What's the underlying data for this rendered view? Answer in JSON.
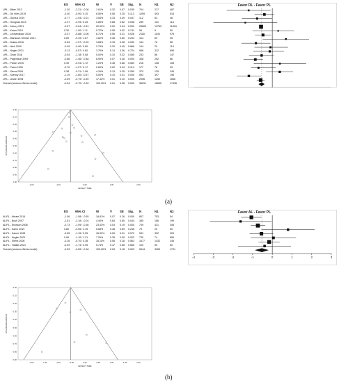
{
  "panel_labels": [
    "(a)",
    "(b)"
  ],
  "chart_data": [
    {
      "type": "table",
      "panel": "(a)",
      "columns": [
        "",
        "ES",
        "95% CI",
        "W",
        "V",
        "SE",
        "Sig.",
        "N",
        "N1",
        "N2"
      ],
      "rows": [
        [
          "LIPL - Biber 2012",
          "-1.20",
          "-2.31 / -0.08",
          "1.61%",
          "0.32",
          "0.57",
          "0.035",
          "704",
          "217",
          "487"
        ],
        [
          "LIPL - De Vries 2019",
          "-0.40",
          "-0.90 / 0.10",
          "6.50%",
          "0.06",
          "0.25",
          "0.113",
          "1059",
          "493",
          "516"
        ],
        [
          "LIPL - Gurbuz 2019",
          "-0.77",
          "-1.54 / -0.01",
          "3.54%",
          "0.15",
          "0.39",
          "0.047",
          "112",
          "64",
          "48"
        ],
        [
          "LIPL - Honglula 2019",
          "-1.37",
          "-2.99 / 0.25",
          "0.89%",
          "0.68",
          "0.82",
          "0.098",
          "289",
          "151",
          "118"
        ],
        [
          "LIPL - Jobory 2021",
          "-0.57",
          "-0.64 / -0.51",
          "22.90%",
          "0.00",
          "0.04",
          "0.000",
          "25603",
          "13769",
          "11834"
        ],
        [
          "LIPL - Kamo 2019",
          "0.30",
          "-1.00 / 1.11",
          "0.72%",
          "0.95",
          "0.92",
          "0.741",
          "59",
          "9",
          "50"
        ],
        [
          "LIPL - Leonardsson 2016",
          "-0.47",
          "-0.88 / -0.06",
          "8.71%",
          "0.05",
          "0.21",
          "0.026",
          "2118",
          "1140",
          "978"
        ],
        [
          "LIPL - Mansouri-Tehrani 2021",
          "0.69",
          "-0.49 / 1.87",
          "1.62%",
          "0.36",
          "0.60",
          "0.254",
          "104",
          "69",
          "35"
        ],
        [
          "LIPL - Mukka 2016",
          "-0.83",
          "-1.57 / -0.09",
          "3.68%",
          "0.15",
          "0.38",
          "0.030",
          "134",
          "76",
          "58"
        ],
        [
          "LIPL - Nieh 2009",
          "-0.09",
          "-0.90 / 0.80",
          "2.79%",
          "0.20",
          "0.45",
          "0.866",
          "144",
          "29",
          "115"
        ],
        [
          "LIPL - Nogler 2021",
          "-0.13",
          "-0.97 / 0.60",
          "3.76%",
          "0.14",
          "0.36",
          "0.724",
          "968",
          "312",
          "656"
        ],
        [
          "LIPL - Ocan 2016",
          "-0.54",
          "-1.18 / 0.08",
          "5.00%",
          "0.10",
          "0.32",
          "0.085",
          "233",
          "86",
          "147"
        ],
        [
          "LIPL - Pagenison 2009",
          "-0.86",
          "-1.46 / -0.48",
          "6.90%",
          "0.07",
          "0.26",
          "0.000",
          "338",
          "252",
          "86"
        ],
        [
          "LIPL - Parker 2015",
          "0.39",
          "-0.94 / 1.72",
          "1.29%",
          "0.46",
          "0.68",
          "0.569",
          "216",
          "108",
          "108"
        ],
        [
          "LIPL - Paton 1999",
          "-0.70",
          "-1.07 / 0.17",
          "2.60%",
          "0.20",
          "0.44",
          "0.114",
          "177",
          "78",
          "99"
        ],
        [
          "LIPL - Sierra 2009",
          "0.38",
          "-0.31 / 1.06",
          "4.16%",
          "0.13",
          "0.35",
          "0.280",
          "370",
          "125",
          "245"
        ],
        [
          "LIPL - Svenoy 2017",
          "-1.19",
          "-1.80 / -0.57",
          "5.00%",
          "0.10",
          "0.31",
          "0.000",
          "593",
          "397",
          "196"
        ],
        [
          "LIPL - Unwin 1994",
          "-0.59",
          "-0.79 / -0.39",
          "17.42%",
          "0.01",
          "0.10",
          "0.000",
          "2906",
          "1250",
          "1656"
        ],
        [
          "Overall (random-effects model)",
          "-0.54",
          "-0.70 / -0.39",
          "100.00%",
          "0.01",
          "0.08",
          "0.000",
          "36291",
          "18655",
          "17436"
        ]
      ]
    },
    {
      "type": "scatter",
      "panel": "(a)",
      "subtype": "forest",
      "legend_left": "Favor DL",
      "legend_sep": " - ",
      "legend_right": "Favor PL",
      "xlim": [
        -4,
        3
      ],
      "xticks": [
        "-3",
        "-2",
        "-1",
        "0",
        "1",
        "2",
        "3"
      ],
      "points": [
        {
          "es": -1.2,
          "lo": -2.31,
          "hi": -0.08,
          "w": 1.61
        },
        {
          "es": -0.4,
          "lo": -0.9,
          "hi": 0.1,
          "w": 6.5
        },
        {
          "es": -0.77,
          "lo": -1.54,
          "hi": -0.01,
          "w": 3.54
        },
        {
          "es": -1.37,
          "lo": -2.99,
          "hi": 0.25,
          "w": 0.89
        },
        {
          "es": -0.57,
          "lo": -0.64,
          "hi": -0.51,
          "w": 22.9
        },
        {
          "es": 0.3,
          "lo": -1.0,
          "hi": 1.11,
          "w": 0.72
        },
        {
          "es": -0.47,
          "lo": -0.88,
          "hi": -0.06,
          "w": 8.71
        },
        {
          "es": 0.69,
          "lo": -0.49,
          "hi": 1.87,
          "w": 1.62
        },
        {
          "es": -0.83,
          "lo": -1.57,
          "hi": -0.09,
          "w": 3.68
        },
        {
          "es": -0.09,
          "lo": -0.9,
          "hi": 0.8,
          "w": 2.79
        },
        {
          "es": -0.13,
          "lo": -0.97,
          "hi": 0.6,
          "w": 3.76
        },
        {
          "es": -0.54,
          "lo": -1.18,
          "hi": 0.08,
          "w": 5.0
        },
        {
          "es": -0.86,
          "lo": -1.46,
          "hi": -0.48,
          "w": 6.9
        },
        {
          "es": 0.39,
          "lo": -0.94,
          "hi": 1.72,
          "w": 1.29
        },
        {
          "es": -0.7,
          "lo": -1.07,
          "hi": 0.17,
          "w": 2.6
        },
        {
          "es": 0.38,
          "lo": -0.31,
          "hi": 1.06,
          "w": 4.16
        },
        {
          "es": -1.19,
          "lo": -1.8,
          "hi": -0.57,
          "w": 5.0
        },
        {
          "es": -0.59,
          "lo": -0.79,
          "hi": -0.39,
          "w": 17.42
        }
      ],
      "overall": {
        "es": -0.54,
        "lo": -0.7,
        "hi": -0.39
      }
    },
    {
      "type": "scatter",
      "panel": "(a)",
      "subtype": "funnel",
      "xlabel": "EFFECT SIZE",
      "ylabel": "STANDARD ERROR",
      "center": -0.54,
      "xlim": [
        -2.5,
        2.5
      ],
      "ylim": [
        0,
        1.0
      ],
      "xticks": [
        "-2.00",
        "-1.00",
        "0.00",
        "1.00",
        "2.00"
      ],
      "yticks": [
        "0.00",
        "0.10",
        "0.20",
        "0.30",
        "0.40",
        "0.50",
        "0.60",
        "0.70",
        "0.80",
        "0.90",
        "1.00"
      ],
      "points": [
        {
          "x": -1.2,
          "y": 0.57
        },
        {
          "x": -0.4,
          "y": 0.25
        },
        {
          "x": -0.77,
          "y": 0.39
        },
        {
          "x": -1.37,
          "y": 0.82
        },
        {
          "x": -0.57,
          "y": 0.04
        },
        {
          "x": 0.3,
          "y": 0.92
        },
        {
          "x": -0.47,
          "y": 0.21
        },
        {
          "x": 0.69,
          "y": 0.6
        },
        {
          "x": -0.83,
          "y": 0.38
        },
        {
          "x": -0.09,
          "y": 0.45
        },
        {
          "x": -0.13,
          "y": 0.36
        },
        {
          "x": -0.54,
          "y": 0.32
        },
        {
          "x": -0.86,
          "y": 0.26
        },
        {
          "x": 0.39,
          "y": 0.68
        },
        {
          "x": -0.7,
          "y": 0.44
        },
        {
          "x": 0.38,
          "y": 0.35
        },
        {
          "x": -1.19,
          "y": 0.31
        },
        {
          "x": -0.59,
          "y": 0.1
        }
      ]
    },
    {
      "type": "table",
      "panel": "(b)",
      "columns": [
        "",
        "ES",
        "95% CI",
        "W",
        "V",
        "SE",
        "Sig.",
        "N",
        "N1",
        "N2"
      ],
      "rows": [
        [
          "ALIPL - Abram 2014",
          "-1.06",
          "-1.58 / -0.55",
          "18.81%",
          "0.07",
          "0.26",
          "0.000",
          "807",
          "753",
          "54"
        ],
        [
          "ALIPL - Bush 2007",
          "-1.61",
          "-3.18 / -0.04",
          "4.40%",
          "0.64",
          "0.80",
          "0.044",
          "385",
          "186",
          "199"
        ],
        [
          "ALIPL - Ericsson 2008",
          "-0.73",
          "-1.09 / -0.36",
          "23.43%",
          "0.03",
          "0.19",
          "0.000",
          "739",
          "431",
          "308"
        ],
        [
          "ALIPL - Kamo 2019",
          "0.80",
          "-0.55 / 2.15",
          "5.68%",
          "0.48",
          "0.69",
          "0.246",
          "75",
          "25",
          "50"
        ],
        [
          "ALIPL - Kanee 1993",
          "-0.55",
          "-1.15 / 0.05",
          "16.52%",
          "0.09",
          "0.31",
          "0.072",
          "531",
          "302",
          "229"
        ],
        [
          "ALIPL - Nogler 2021",
          "0.06",
          "-1.10 / 1.21",
          "7.29%",
          "0.35",
          "0.59",
          "0.922",
          "730",
          "74",
          "656"
        ],
        [
          "ALIPL - Sierra 2006",
          "-0.16",
          "-0.70 / 0.38",
          "18.11%",
          "0.08",
          "0.28",
          "0.563",
          "1677",
          "1432",
          "245"
        ],
        [
          "ALIPL - Taallas 2021",
          "-0.39",
          "-1.74 / 0.95",
          "5.74%",
          "0.47",
          "0.68",
          "0.565",
          "100",
          "50",
          "50"
        ],
        [
          "Overall (random-effects model)",
          "-0.53",
          "-0.89 / -0.18",
          "100.00%",
          "0.03",
          "0.18",
          "0.003",
          "5044",
          "3253",
          "1791"
        ]
      ]
    },
    {
      "type": "scatter",
      "panel": "(b)",
      "subtype": "forest",
      "legend_left": "Favor AL",
      "legend_sep": " - ",
      "legend_right": "Favor PL",
      "xlim": [
        -4,
        3
      ],
      "xticks": [
        "-4",
        "-3",
        "-2",
        "-1",
        "0",
        "1",
        "2",
        "3"
      ],
      "points": [
        {
          "es": -1.06,
          "lo": -1.58,
          "hi": -0.55,
          "w": 18.81
        },
        {
          "es": -1.61,
          "lo": -3.18,
          "hi": -0.04,
          "w": 4.4
        },
        {
          "es": -0.73,
          "lo": -1.09,
          "hi": -0.36,
          "w": 23.43
        },
        {
          "es": 0.8,
          "lo": -0.55,
          "hi": 2.15,
          "w": 5.68
        },
        {
          "es": -0.55,
          "lo": -1.15,
          "hi": 0.05,
          "w": 16.52
        },
        {
          "es": 0.06,
          "lo": -1.1,
          "hi": 1.21,
          "w": 7.29
        },
        {
          "es": -0.16,
          "lo": -0.7,
          "hi": 0.38,
          "w": 18.11
        },
        {
          "es": -0.39,
          "lo": -1.74,
          "hi": 0.95,
          "w": 5.74
        }
      ],
      "overall": {
        "es": -0.53,
        "lo": -0.89,
        "hi": -0.18
      }
    },
    {
      "type": "scatter",
      "panel": "(b)",
      "subtype": "funnel",
      "xlabel": "EFFECT SIZE",
      "ylabel": "STANDARD ERROR",
      "center": -0.53,
      "xlim": [
        -2.5,
        2.5
      ],
      "ylim": [
        0,
        0.9
      ],
      "xticks": [
        "-2.00",
        "-1.50",
        "-1.00",
        "-0.50",
        "0.00",
        "0.50",
        "1.00",
        "1.50",
        "2.00"
      ],
      "yticks": [
        "0.00",
        "0.10",
        "0.20",
        "0.30",
        "0.40",
        "0.50",
        "0.60",
        "0.70",
        "0.80",
        "0.90"
      ],
      "points": [
        {
          "x": -1.06,
          "y": 0.26
        },
        {
          "x": -1.61,
          "y": 0.8
        },
        {
          "x": -0.73,
          "y": 0.19
        },
        {
          "x": 0.8,
          "y": 0.69
        },
        {
          "x": -0.55,
          "y": 0.31
        },
        {
          "x": 0.06,
          "y": 0.59
        },
        {
          "x": -0.16,
          "y": 0.28
        },
        {
          "x": -0.39,
          "y": 0.68
        }
      ]
    }
  ]
}
